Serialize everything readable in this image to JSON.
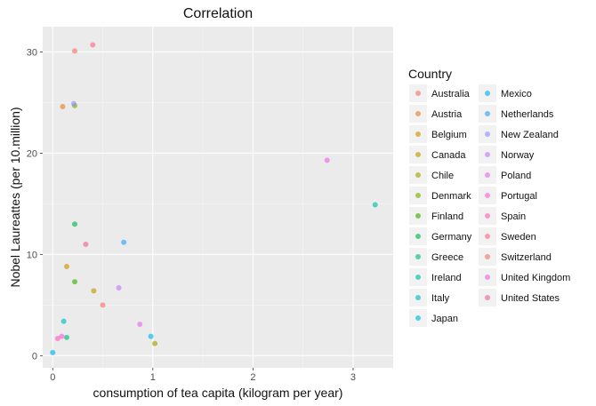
{
  "chart_data": {
    "type": "scatter",
    "title": "Correlation",
    "xlabel": "consumption of tea capita (kilogram per year)",
    "ylabel": "Nobel Laureattes (per 10.million)",
    "xlim": [
      -0.1,
      3.4
    ],
    "ylim": [
      -1.2,
      32.5
    ],
    "x_ticks": [
      0,
      1,
      2,
      3
    ],
    "y_ticks": [
      0,
      10,
      20,
      30
    ],
    "grid": true,
    "legend_title": "Country",
    "legend_position": "right",
    "series": [
      {
        "name": "Australia",
        "color": "#F8766D",
        "x": [
          0.5
        ],
        "y": [
          5.0
        ]
      },
      {
        "name": "Austria",
        "color": "#EA8331",
        "x": [
          0.1
        ],
        "y": [
          24.6
        ]
      },
      {
        "name": "Belgium",
        "color": "#D89000",
        "x": [
          0.14
        ],
        "y": [
          8.8
        ]
      },
      {
        "name": "Canada",
        "color": "#C09B00",
        "x": [
          0.41
        ],
        "y": [
          6.4
        ]
      },
      {
        "name": "Chile",
        "color": "#A3A500",
        "x": [
          1.02
        ],
        "y": [
          1.2
        ]
      },
      {
        "name": "Denmark",
        "color": "#7CAE00",
        "x": [
          0.22
        ],
        "y": [
          24.7
        ]
      },
      {
        "name": "Finland",
        "color": "#39B600",
        "x": [
          0.22
        ],
        "y": [
          7.3
        ]
      },
      {
        "name": "Germany",
        "color": "#00BB4E",
        "x": [
          0.22
        ],
        "y": [
          13.0
        ]
      },
      {
        "name": "Greece",
        "color": "#00BF7D",
        "x": [
          0.14
        ],
        "y": [
          1.8
        ]
      },
      {
        "name": "Ireland",
        "color": "#00C1A3",
        "x": [
          3.22
        ],
        "y": [
          14.9
        ]
      },
      {
        "name": "Italy",
        "color": "#00BFC4",
        "x": [
          0.11
        ],
        "y": [
          3.4
        ]
      },
      {
        "name": "Japan",
        "color": "#00BAE0",
        "x": [
          0.98
        ],
        "y": [
          1.9
        ]
      },
      {
        "name": "Mexico",
        "color": "#00B0F6",
        "x": [
          0.0
        ],
        "y": [
          0.3
        ]
      },
      {
        "name": "Netherlands",
        "color": "#35A2FF",
        "x": [
          0.71
        ],
        "y": [
          11.2
        ]
      },
      {
        "name": "New Zealand",
        "color": "#9590FF",
        "x": [
          0.21
        ],
        "y": [
          24.9
        ]
      },
      {
        "name": "Norway",
        "color": "#C77CFF",
        "x": [
          0.66
        ],
        "y": [
          6.7
        ]
      },
      {
        "name": "Poland",
        "color": "#E76BF3",
        "x": [
          0.87
        ],
        "y": [
          3.1
        ]
      },
      {
        "name": "Portugal",
        "color": "#FA62DB",
        "x": [
          0.09
        ],
        "y": [
          1.9
        ]
      },
      {
        "name": "Spain",
        "color": "#FF62BC",
        "x": [
          0.05
        ],
        "y": [
          1.7
        ]
      },
      {
        "name": "Sweden",
        "color": "#FF6C91",
        "x": [
          0.4
        ],
        "y": [
          30.7
        ]
      },
      {
        "name": "Switzerland",
        "color": "#F8766D",
        "x": [
          0.22
        ],
        "y": [
          30.1
        ]
      },
      {
        "name": "United Kingdom",
        "color": "#EF67EB",
        "x": [
          2.74
        ],
        "y": [
          19.3
        ]
      },
      {
        "name": "United States",
        "color": "#F264A0",
        "x": [
          0.33
        ],
        "y": [
          11.0
        ]
      }
    ]
  }
}
